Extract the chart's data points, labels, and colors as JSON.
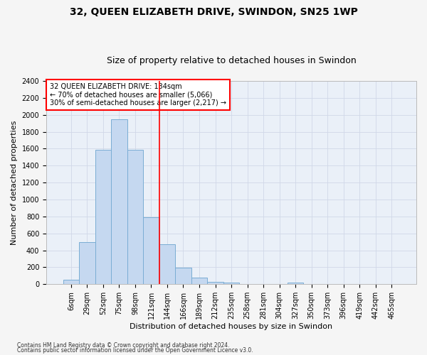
{
  "title1": "32, QUEEN ELIZABETH DRIVE, SWINDON, SN25 1WP",
  "title2": "Size of property relative to detached houses in Swindon",
  "xlabel": "Distribution of detached houses by size in Swindon",
  "ylabel": "Number of detached properties",
  "footer1": "Contains HM Land Registry data © Crown copyright and database right 2024.",
  "footer2": "Contains public sector information licensed under the Open Government Licence v3.0.",
  "annotation_line1": "32 QUEEN ELIZABETH DRIVE: 134sqm",
  "annotation_line2": "← 70% of detached houses are smaller (5,066)",
  "annotation_line3": "30% of semi-detached houses are larger (2,217) →",
  "bar_labels": [
    "6sqm",
    "29sqm",
    "52sqm",
    "75sqm",
    "98sqm",
    "121sqm",
    "144sqm",
    "166sqm",
    "189sqm",
    "212sqm",
    "235sqm",
    "258sqm",
    "281sqm",
    "304sqm",
    "327sqm",
    "350sqm",
    "373sqm",
    "396sqm",
    "419sqm",
    "442sqm",
    "465sqm"
  ],
  "bar_values": [
    50,
    500,
    1590,
    1950,
    1590,
    790,
    470,
    195,
    80,
    30,
    22,
    0,
    0,
    0,
    20,
    0,
    0,
    0,
    0,
    0,
    0
  ],
  "bar_color": "#c5d8f0",
  "bar_edge_color": "#7aadd4",
  "vline_x": 5.5,
  "vline_color": "red",
  "ylim": [
    0,
    2400
  ],
  "yticks": [
    0,
    200,
    400,
    600,
    800,
    1000,
    1200,
    1400,
    1600,
    1800,
    2000,
    2200,
    2400
  ],
  "grid_color": "#d0d8e8",
  "bg_color": "#eaf0f8",
  "fig_bg_color": "#f5f5f5",
  "title1_fontsize": 10,
  "title2_fontsize": 9,
  "ylabel_fontsize": 8,
  "xlabel_fontsize": 8,
  "tick_fontsize": 7,
  "annotation_fontsize": 7,
  "footer_fontsize": 5.5
}
